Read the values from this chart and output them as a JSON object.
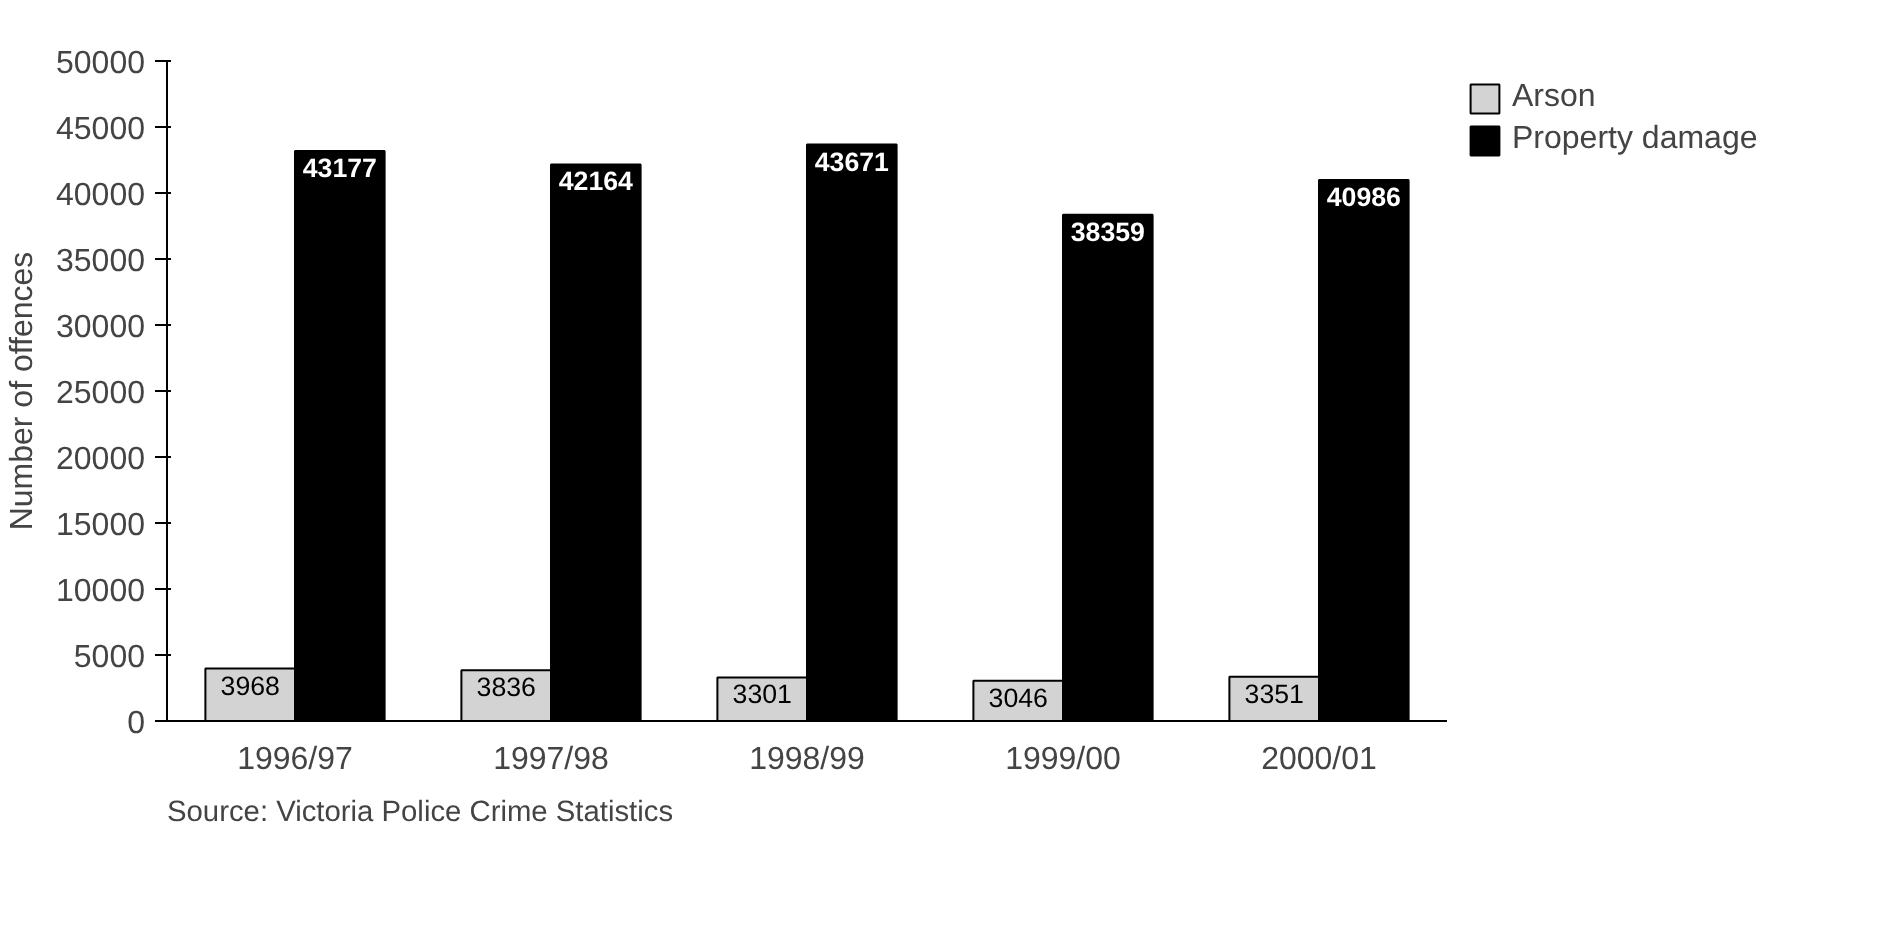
{
  "chart_data": {
    "type": "bar",
    "ylabel": "Number of offences",
    "categories": [
      "1996/97",
      "1997/98",
      "1998/99",
      "1999/00",
      "2000/01"
    ],
    "series": [
      {
        "name": "Arson",
        "color": "#d3d3d3",
        "values": [
          3968,
          3836,
          3301,
          3046,
          3351
        ]
      },
      {
        "name": "Property damage",
        "color": "#000000",
        "values": [
          43177,
          42164,
          43671,
          38359,
          40986
        ]
      }
    ],
    "ylim": [
      0,
      50000
    ],
    "yticks": [
      0,
      5000,
      10000,
      15000,
      20000,
      25000,
      30000,
      35000,
      40000,
      45000,
      50000
    ],
    "grid": false,
    "legend": "right",
    "data_labels": true,
    "annotations": [
      "Source: Victoria Police Crime Statistics"
    ]
  }
}
